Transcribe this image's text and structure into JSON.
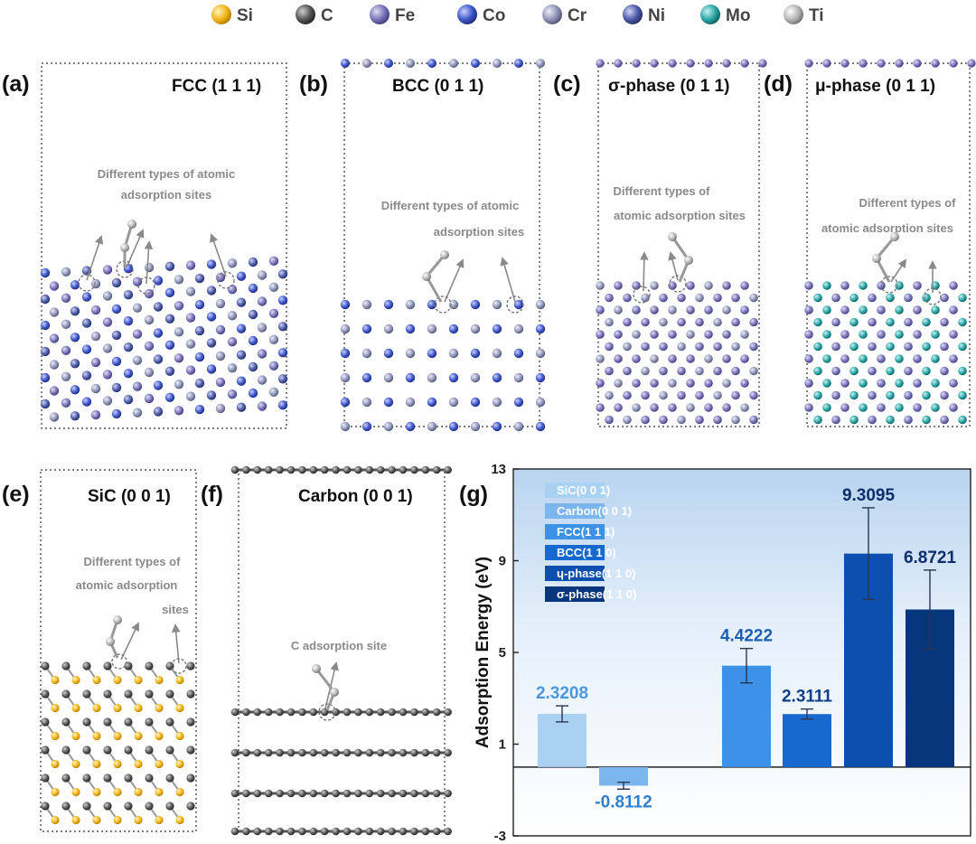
{
  "legend": {
    "elements": [
      {
        "symbol": "Si",
        "color": "#f2b51a"
      },
      {
        "symbol": "C",
        "color": "#555555"
      },
      {
        "symbol": "Fe",
        "color": "#7872b8"
      },
      {
        "symbol": "Co",
        "color": "#3f56c8"
      },
      {
        "symbol": "Cr",
        "color": "#8f93b8"
      },
      {
        "symbol": "Ni",
        "color": "#4c5aa8"
      },
      {
        "symbol": "Mo",
        "color": "#2aa5a5"
      },
      {
        "symbol": "Ti",
        "color": "#a9a9a9"
      }
    ]
  },
  "panels": {
    "a": {
      "letter": "(a)",
      "title": "FCC (1 1 1)",
      "annot": [
        "Different types of atomic",
        "adsorption sites"
      ]
    },
    "b": {
      "letter": "(b)",
      "title": "BCC (0 1 1)",
      "annot": [
        "Different types of atomic",
        "adsorption sites"
      ]
    },
    "c": {
      "letter": "(c)",
      "title": "σ-phase (0 1 1)",
      "annot": [
        "Different types of",
        "atomic adsorption sites"
      ]
    },
    "d": {
      "letter": "(d)",
      "title": "μ-phase (0 1 1)",
      "annot": [
        "Different types of",
        "atomic adsorption sites"
      ]
    },
    "e": {
      "letter": "(e)",
      "title": "SiC (0 0 1)",
      "annot": [
        "Different types of",
        "atomic adsorption",
        "sites"
      ]
    },
    "f": {
      "letter": "(f)",
      "title": "Carbon (0 0 1)",
      "annot": [
        "C adsorption site"
      ]
    },
    "g": {
      "letter": "(g)"
    }
  },
  "chart_data": {
    "type": "bar",
    "title": "",
    "xlabel": "",
    "ylabel": "Adsorption Energy (eV)",
    "ylim": [
      -3,
      13
    ],
    "yticks": [
      -3,
      1,
      5,
      9,
      13
    ],
    "legend_position": "top-left",
    "grid": false,
    "series": [
      {
        "name": "SiC(0 0 1)",
        "value": 2.3208,
        "label": "2.3208",
        "error": 0.35,
        "color": "#a9d1f2",
        "label_color": "#4a97dd"
      },
      {
        "name": "Carbon(0 0 1)",
        "value": -0.8112,
        "label": "-0.8112",
        "error": 0.15,
        "color": "#7bb7ee",
        "label_color": "#2f7fd0"
      },
      {
        "name": "FCC(1 1 1)",
        "value": 4.4222,
        "label": "4.4222",
        "error": 0.75,
        "color": "#3d92e8",
        "label_color": "#1d5fb0"
      },
      {
        "name": "BCC(1 1 0)",
        "value": 2.3111,
        "label": "2.3111",
        "error": 0.22,
        "color": "#1769d0",
        "label_color": "#0f3f86"
      },
      {
        "name": "ɥ-phase(1 1 0)",
        "value": 9.3095,
        "label": "9.3095",
        "error": 2.0,
        "color": "#0d4fae",
        "label_color": "#0d2d6b"
      },
      {
        "name": "σ-phase(1 1 0)",
        "value": 6.8721,
        "label": "6.8721",
        "error": 1.72,
        "color": "#07367c",
        "label_color": "#0d2d6b"
      }
    ]
  }
}
